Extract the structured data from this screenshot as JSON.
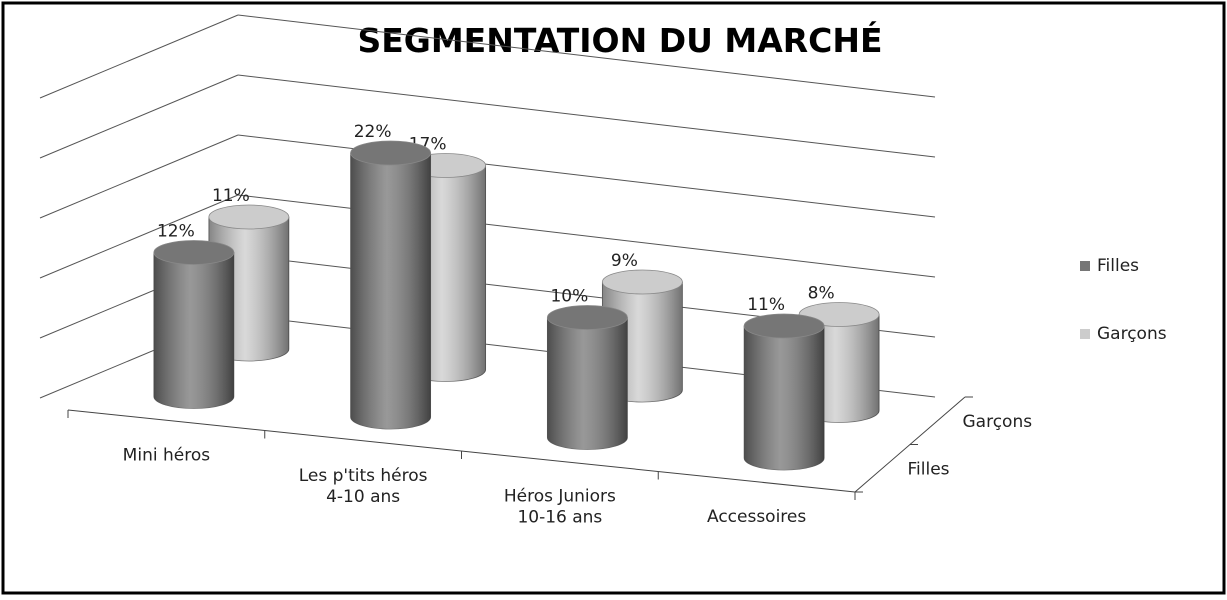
{
  "chart_data": {
    "type": "bar3d",
    "title": "SEGMENTATION DU MARCHÉ",
    "categories": [
      "Mini héros",
      "Les p'tits héros\n4-10 ans",
      "Héros Juniors\n10-16 ans",
      "Accessoires"
    ],
    "series": [
      {
        "name": "Filles",
        "color": "#767676",
        "values": [
          12,
          22,
          10,
          11
        ],
        "value_labels": [
          "12%",
          "22%",
          "10%",
          "11%"
        ]
      },
      {
        "name": "Garçons",
        "color": "#cccccc",
        "values": [
          11,
          17,
          9,
          8
        ],
        "value_labels": [
          "11%",
          "17%",
          "9%",
          "8%"
        ]
      }
    ],
    "ylim": [
      0,
      25
    ],
    "yticks": [
      0,
      5,
      10,
      15,
      20,
      25
    ],
    "grid": true,
    "legend": "right"
  }
}
